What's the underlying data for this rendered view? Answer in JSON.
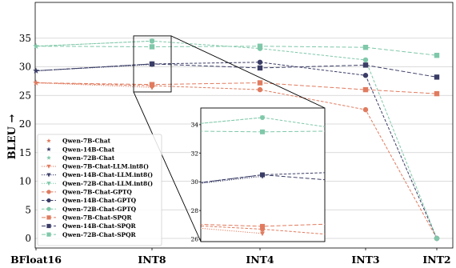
{
  "chart_data": {
    "type": "line",
    "ylabel": "BLEU →",
    "xlabel": "",
    "categories": [
      "BFloat16",
      "INT8",
      "INT4",
      "INT3",
      "INT2"
    ],
    "ylim": [
      -1,
      36
    ],
    "yticks": [
      0,
      5,
      10,
      15,
      20,
      25,
      30,
      35
    ],
    "grid": "horizontal",
    "legend_position": "lower-left",
    "colors": {
      "orange": "#e07b5f",
      "navy": "#3a3d66",
      "teal": "#7fc8a9"
    },
    "baseline": [
      {
        "name": "Qwen-7B-Chat",
        "value": 27.2,
        "color": "#e07b5f",
        "marker": "star"
      },
      {
        "name": "Qwen-14B-Chat",
        "value": 29.3,
        "color": "#3a3d66",
        "marker": "star"
      },
      {
        "name": "Qwen-72B-Chat",
        "value": 33.6,
        "color": "#7fc8a9",
        "marker": "star"
      }
    ],
    "series": [
      {
        "name": "Qwen-7B-Chat-LLM.int8()",
        "method": "llmint8",
        "marker": "triangle-down",
        "color": "#e07b5f",
        "values": [
          27.2,
          26.4,
          null,
          null,
          null
        ]
      },
      {
        "name": "Qwen-14B-Chat-LLM.int8()",
        "method": "llmint8",
        "marker": "triangle-down",
        "color": "#3a3d66",
        "values": [
          29.3,
          30.4,
          null,
          null,
          null
        ]
      },
      {
        "name": "Qwen-72B-Chat-LLM.int8()",
        "method": "llmint8",
        "marker": "triangle-down",
        "color": "#7fc8a9",
        "values": [
          33.6,
          34.5,
          null,
          null,
          null
        ]
      },
      {
        "name": "Qwen-7B-Chat-GPTQ",
        "method": "gptq",
        "marker": "circle",
        "color": "#e07b5f",
        "values": [
          27.2,
          26.7,
          26.0,
          22.5,
          0
        ]
      },
      {
        "name": "Qwen-14B-Chat-GPTQ",
        "method": "gptq",
        "marker": "circle",
        "color": "#3a3d66",
        "values": [
          29.3,
          30.5,
          30.8,
          28.5,
          0
        ]
      },
      {
        "name": "Qwen-72B-Chat-GPTQ",
        "method": "gptq",
        "marker": "circle",
        "color": "#7fc8a9",
        "values": [
          33.6,
          34.5,
          33.2,
          31.2,
          0
        ]
      },
      {
        "name": "Qwen-7B-Chat-SPQR",
        "method": "spqr",
        "marker": "square",
        "color": "#e07b5f",
        "values": [
          27.2,
          26.9,
          27.2,
          26.0,
          25.3
        ]
      },
      {
        "name": "Qwen-14B-Chat-SPQR",
        "method": "spqr",
        "marker": "square",
        "color": "#3a3d66",
        "values": [
          29.3,
          30.5,
          29.8,
          30.3,
          28.2
        ]
      },
      {
        "name": "Qwen-72B-Chat-SPQR",
        "method": "spqr",
        "marker": "square",
        "color": "#7fc8a9",
        "values": [
          33.6,
          33.5,
          33.6,
          33.4,
          32.0
        ]
      }
    ],
    "inset": {
      "category": "INT8",
      "ylim": [
        26,
        35
      ],
      "yticks": [
        26,
        28,
        30,
        32,
        34
      ]
    }
  }
}
